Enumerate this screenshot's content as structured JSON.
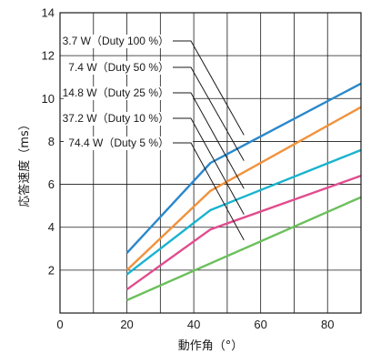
{
  "chart_data": {
    "type": "line",
    "xlabel": "動作角（°）",
    "ylabel": "応答速度（ms）",
    "xlim": [
      0,
      90
    ],
    "ylim": [
      0,
      14
    ],
    "xticks": [
      0,
      20,
      40,
      60,
      80
    ],
    "yticks": [
      2,
      4,
      6,
      8,
      10,
      12,
      14
    ],
    "grid": true,
    "series": [
      {
        "name": "3.7 W（Duty 100 %）",
        "color": "#2a88cc",
        "x": [
          20,
          45,
          90
        ],
        "y": [
          2.8,
          7.0,
          10.7
        ]
      },
      {
        "name": "7.4 W（Duty 50 %）",
        "color": "#f0923c",
        "x": [
          20,
          45,
          90
        ],
        "y": [
          2.0,
          5.7,
          9.6
        ]
      },
      {
        "name": "14.8 W（Duty 25 %）",
        "color": "#19b3cf",
        "x": [
          20,
          45,
          90
        ],
        "y": [
          1.8,
          4.8,
          7.6
        ]
      },
      {
        "name": "37.2 W（Duty 10 %）",
        "color": "#e04d8e",
        "x": [
          20,
          45,
          90
        ],
        "y": [
          1.1,
          3.9,
          6.4
        ]
      },
      {
        "name": "74.4 W（Duty 5 %）",
        "color": "#6cc05c",
        "x": [
          20,
          90
        ],
        "y": [
          0.6,
          5.4
        ]
      }
    ],
    "annotations": [
      {
        "label": "3.7 W（Duty 100 %）",
        "series": 0
      },
      {
        "label": "7.4 W（Duty 50 %）",
        "series": 1
      },
      {
        "label": "14.8 W（Duty 25 %）",
        "series": 2
      },
      {
        "label": "37.2 W（Duty 10 %）",
        "series": 3
      },
      {
        "label": "74.4 W（Duty 5 %）",
        "series": 4
      }
    ]
  }
}
